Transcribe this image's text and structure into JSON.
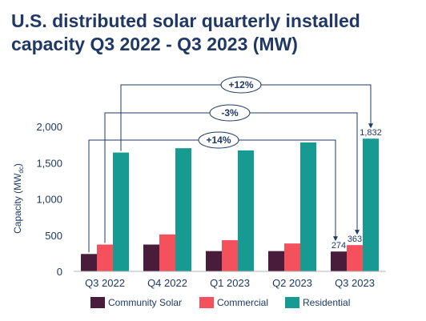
{
  "title_line1": "U.S. distributed solar quarterly installed",
  "title_line2": "capacity Q3 2022 - Q3 2023 (MW)",
  "chart_data": {
    "type": "bar",
    "categories": [
      "Q3 2022",
      "Q4 2022",
      "Q1 2023",
      "Q2 2023",
      "Q3 2023"
    ],
    "series": [
      {
        "name": "Community Solar",
        "color": "#4a1c3c",
        "values": [
          240,
          370,
          280,
          280,
          274
        ]
      },
      {
        "name": "Commercial",
        "color": "#f4515d",
        "values": [
          370,
          510,
          430,
          385,
          363
        ]
      },
      {
        "name": "Residential",
        "color": "#169a92",
        "values": [
          1640,
          1700,
          1670,
          1780,
          1832
        ]
      }
    ],
    "data_labels": [
      {
        "series": 0,
        "category": 4,
        "text": "274"
      },
      {
        "series": 1,
        "category": 4,
        "text": "363"
      },
      {
        "series": 2,
        "category": 4,
        "text": "1,832"
      }
    ],
    "annotations": [
      {
        "text": "+12%",
        "series": 2
      },
      {
        "text": "-3%",
        "series": 1
      },
      {
        "text": "+14%",
        "series": 0
      }
    ],
    "ylabel": "Capacity (MW",
    "ylabel_sub": "dc",
    "ylabel_end": ")",
    "ylim": [
      0,
      2000
    ],
    "yticks": [
      0,
      500,
      1000,
      1500,
      2000
    ],
    "ytick_labels": [
      "0",
      "500",
      "1,000",
      "1,500",
      "2,000"
    ],
    "grid": false,
    "legend_position": "bottom"
  }
}
